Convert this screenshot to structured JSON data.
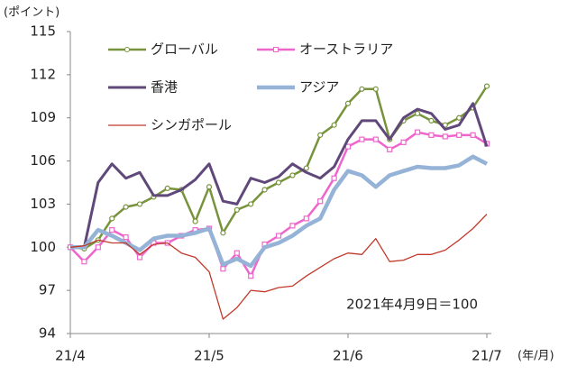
{
  "chart_data": {
    "type": "line",
    "y_label": "(ポイント)",
    "x_label": "(年/月)",
    "annotation": "2021年4月9日＝100",
    "categories": [
      "21/4",
      null,
      null,
      null,
      null,
      null,
      null,
      null,
      null,
      null,
      "21/5",
      null,
      null,
      null,
      null,
      null,
      null,
      null,
      null,
      null,
      "21/6",
      null,
      null,
      null,
      null,
      null,
      null,
      null,
      null,
      null,
      "21/7"
    ],
    "ylim": [
      94,
      115
    ],
    "yticks": [
      94,
      97,
      100,
      103,
      106,
      109,
      112,
      115
    ],
    "series": [
      {
        "name": "グローバル",
        "color": "#77933c",
        "marker": "circle",
        "linewidth": 2.5,
        "values": [
          100,
          99.9,
          100.5,
          102,
          102.8,
          103,
          103.5,
          104.1,
          104,
          101.8,
          104.2,
          101,
          102.6,
          103,
          104,
          104.5,
          105,
          105.5,
          107.8,
          108.5,
          110,
          111,
          111,
          107.5,
          108.8,
          109.3,
          108.8,
          108.5,
          109,
          109.7,
          111.2
        ]
      },
      {
        "name": "オーストラリア",
        "color": "#ee66cc",
        "marker": "square",
        "linewidth": 2.5,
        "values": [
          100,
          99,
          100,
          101.2,
          100.7,
          99.3,
          100.3,
          100.3,
          100.8,
          101.2,
          101.3,
          98.5,
          99.6,
          98,
          100.2,
          100.8,
          101.5,
          102,
          103.2,
          104.8,
          107,
          107.5,
          107.5,
          106.8,
          107.3,
          108,
          107.8,
          107.7,
          107.8,
          107.8,
          107.2
        ]
      },
      {
        "name": "香港",
        "color": "#60497a",
        "marker": null,
        "linewidth": 3,
        "values": [
          100,
          100,
          104.5,
          105.8,
          104.8,
          105.2,
          103.6,
          103.6,
          104,
          104.7,
          105.8,
          103.2,
          103,
          104.8,
          104.5,
          104.9,
          105.8,
          105.2,
          104.8,
          105.6,
          107.5,
          108.8,
          108.8,
          107.5,
          109,
          109.6,
          109.3,
          108.2,
          108.5,
          110,
          107
        ]
      },
      {
        "name": "アジア",
        "color": "#95b3d7",
        "marker": null,
        "linewidth": 4.5,
        "values": [
          100,
          100,
          101.2,
          100.8,
          100.3,
          99.8,
          100.6,
          100.8,
          100.8,
          101,
          101.3,
          98.8,
          99.2,
          98.7,
          100,
          100.3,
          100.8,
          101.5,
          102,
          104,
          105.3,
          105,
          104.2,
          105,
          105.3,
          105.6,
          105.5,
          105.5,
          105.7,
          106.3,
          105.8
        ]
      },
      {
        "name": "シンガポール",
        "color": "#c0392b",
        "marker": null,
        "linewidth": 1.3,
        "values": [
          100,
          100.1,
          100.5,
          100.3,
          100.3,
          99.5,
          100.2,
          100.3,
          99.6,
          99.3,
          98.3,
          95,
          95.8,
          97,
          96.9,
          97.2,
          97.3,
          98,
          98.6,
          99.2,
          99.6,
          99.5,
          100.6,
          99,
          99.1,
          99.5,
          99.5,
          99.8,
          100.5,
          101.3,
          102.3
        ]
      }
    ]
  }
}
